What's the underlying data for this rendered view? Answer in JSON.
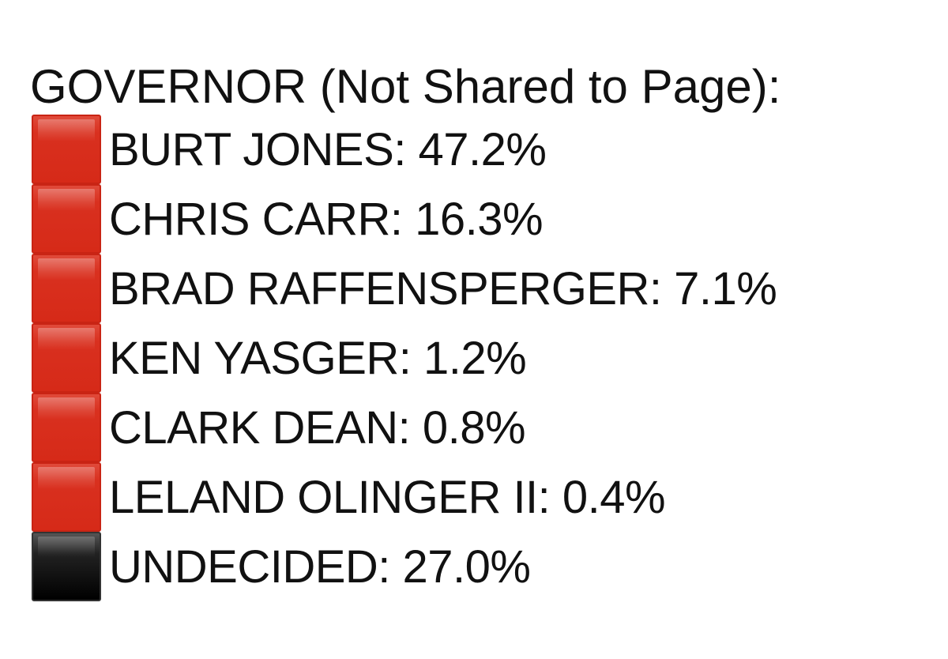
{
  "title": "GOVERNOR (Not Shared to Page):",
  "colors": {
    "republican": "#d62a18",
    "undecided": "#000000"
  },
  "items": [
    {
      "label": "BURT JONES: 47.2%",
      "name": "BURT JONES",
      "value": 47.2,
      "icon": "red-square-icon"
    },
    {
      "label": "CHRIS CARR: 16.3%",
      "name": "CHRIS CARR",
      "value": 16.3,
      "icon": "red-square-icon"
    },
    {
      "label": "BRAD RAFFENSPERGER: 7.1%",
      "name": "BRAD RAFFENSPERGER",
      "value": 7.1,
      "icon": "red-square-icon"
    },
    {
      "label": "KEN YASGER: 1.2%",
      "name": "KEN YASGER",
      "value": 1.2,
      "icon": "red-square-icon"
    },
    {
      "label": "CLARK DEAN: 0.8%",
      "name": "CLARK DEAN",
      "value": 0.8,
      "icon": "red-square-icon"
    },
    {
      "label": "LELAND OLINGER II: 0.4%",
      "name": "LELAND OLINGER II",
      "value": 0.4,
      "icon": "red-square-icon"
    },
    {
      "label": "UNDECIDED: 27.0%",
      "name": "UNDECIDED",
      "value": 27.0,
      "icon": "black-square-icon"
    }
  ]
}
